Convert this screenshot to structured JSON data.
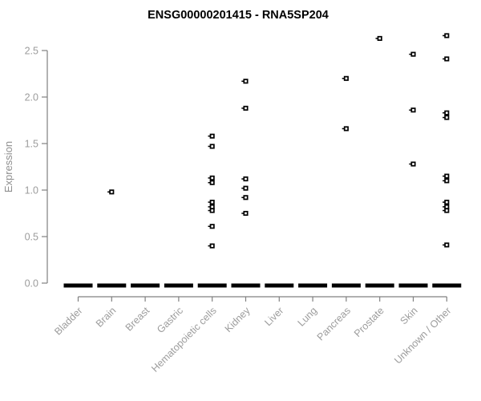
{
  "chart_data": {
    "type": "scatter",
    "title": "ENSG00000201415 - RNA5SP204",
    "ylabel": "Expression",
    "xlabel": "",
    "grid": false,
    "legend": "none",
    "marker": "small-open-square",
    "ylim": [
      0,
      2.75
    ],
    "yticks": [
      "0.0",
      "0.5",
      "1.0",
      "1.5",
      "2.0",
      "2.5"
    ],
    "categories": [
      "Bladder",
      "Brain",
      "Breast",
      "Gastric",
      "Hematopoietic cells",
      "Kidney",
      "Liver",
      "Lung",
      "Pancreas",
      "Prostate",
      "Skin",
      "Unknown / Other"
    ],
    "series": [
      {
        "name": "Bladder",
        "values": [],
        "zero_dash": true
      },
      {
        "name": "Brain",
        "values": [
          0.98
        ],
        "zero_dash": true
      },
      {
        "name": "Breast",
        "values": [],
        "zero_dash": true
      },
      {
        "name": "Gastric",
        "values": [],
        "zero_dash": true
      },
      {
        "name": "Hematopoietic cells",
        "values": [
          1.58,
          1.47,
          1.13,
          1.08,
          0.87,
          0.82,
          0.78,
          0.61,
          0.4
        ],
        "zero_dash": true
      },
      {
        "name": "Kidney",
        "values": [
          2.17,
          1.88,
          1.12,
          1.02,
          0.92,
          0.75
        ],
        "zero_dash": true
      },
      {
        "name": "Liver",
        "values": [],
        "zero_dash": true
      },
      {
        "name": "Lung",
        "values": [],
        "zero_dash": true
      },
      {
        "name": "Pancreas",
        "values": [
          2.2,
          1.66
        ],
        "zero_dash": true
      },
      {
        "name": "Prostate",
        "values": [
          2.63
        ],
        "zero_dash": true
      },
      {
        "name": "Skin",
        "values": [
          2.46,
          1.86,
          1.28
        ],
        "zero_dash": true
      },
      {
        "name": "Unknown / Other",
        "values": [
          2.66,
          2.41,
          1.83,
          1.78,
          1.15,
          1.1,
          0.87,
          0.82,
          0.78,
          0.41
        ],
        "zero_dash": true
      }
    ],
    "colors": {
      "points": "#000000",
      "zero_dash": "#000000",
      "axis_line": "#808080",
      "tick_labels": "#9c9c9c",
      "title": "#000000"
    }
  }
}
